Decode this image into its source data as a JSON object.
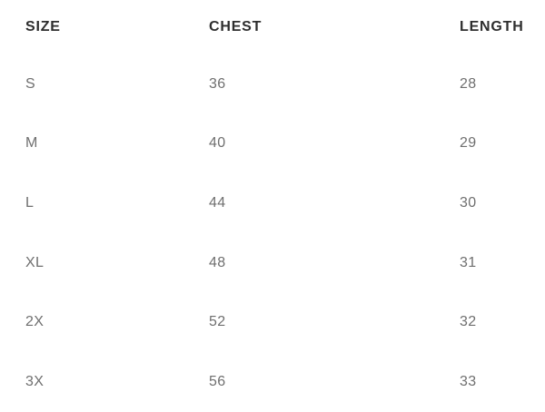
{
  "table": {
    "columns": [
      {
        "label": "SIZE"
      },
      {
        "label": "CHEST"
      },
      {
        "label": "LENGTH"
      }
    ],
    "rows": [
      {
        "size": "S",
        "chest": "36",
        "length": "28"
      },
      {
        "size": "M",
        "chest": "40",
        "length": "29"
      },
      {
        "size": "L",
        "chest": "44",
        "length": "30"
      },
      {
        "size": "XL",
        "chest": "48",
        "length": "31"
      },
      {
        "size": "2X",
        "chest": "52",
        "length": "32"
      },
      {
        "size": "3X",
        "chest": "56",
        "length": "33"
      }
    ]
  },
  "chart_data": {
    "type": "table",
    "title": "",
    "columns": [
      "SIZE",
      "CHEST",
      "LENGTH"
    ],
    "rows_values": [
      [
        "S",
        36,
        28
      ],
      [
        "M",
        40,
        29
      ],
      [
        "L",
        44,
        30
      ],
      [
        "XL",
        48,
        31
      ],
      [
        "2X",
        52,
        32
      ],
      [
        "3X",
        56,
        33
      ]
    ]
  },
  "colors": {
    "background": "#ffffff",
    "header_text": "#2e2e2e",
    "body_text": "#6f6f6f"
  }
}
